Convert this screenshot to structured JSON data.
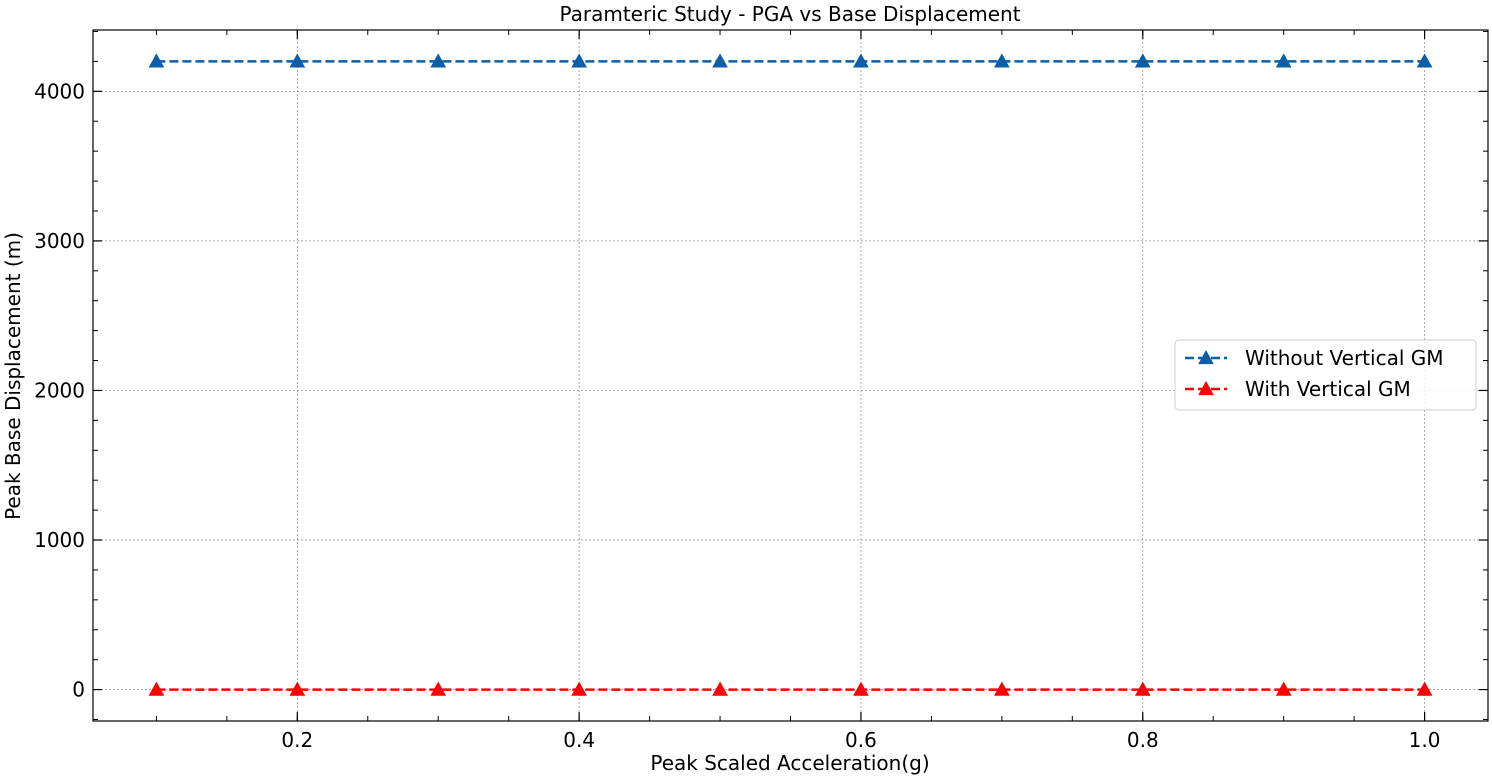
{
  "chart_data": {
    "type": "line",
    "title": "Paramteric Study - PGA vs Base Displacement",
    "xlabel": "Peak Scaled Acceleration(g)",
    "ylabel": "Peak Base Displacement (m)",
    "xlim": [
      0.055,
      1.045
    ],
    "ylim": [
      -210,
      4410
    ],
    "xticks": [
      0.2,
      0.4,
      0.6,
      0.8,
      1.0
    ],
    "xtick_labels": [
      "0.2",
      "0.4",
      "0.6",
      "0.8",
      "1.0"
    ],
    "yticks": [
      0,
      1000,
      2000,
      3000,
      4000
    ],
    "ytick_labels": [
      "0",
      "1000",
      "2000",
      "3000",
      "4000"
    ],
    "grid": true,
    "legend_position": "center-right",
    "x": [
      0.1,
      0.2,
      0.3,
      0.4,
      0.5,
      0.6,
      0.7,
      0.8,
      0.9,
      1.0
    ],
    "series": [
      {
        "name": "Without Vertical GM",
        "color": "#0b5ea8",
        "marker": "triangle",
        "linestyle": "dashed",
        "values": [
          4200,
          4200,
          4200,
          4200,
          4200,
          4200,
          4200,
          4200,
          4200,
          4200
        ]
      },
      {
        "name": "With Vertical GM",
        "color": "#ff0000",
        "marker": "triangle",
        "linestyle": "dashed",
        "values": [
          0,
          0,
          0,
          0,
          0,
          0,
          0,
          0,
          0,
          0
        ]
      }
    ]
  }
}
